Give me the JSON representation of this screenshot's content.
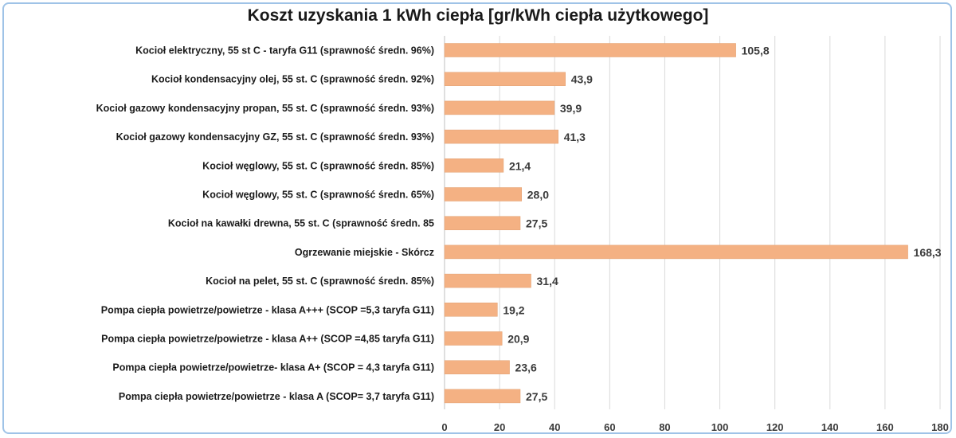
{
  "chart_data": {
    "type": "bar",
    "orientation": "horizontal",
    "title": "Koszt uzyskania 1 kWh ciepła [gr/kWh ciepła użytkowego]",
    "xlabel": "",
    "ylabel": "",
    "xlim": [
      0,
      180
    ],
    "x_ticks": [
      "0",
      "20",
      "40",
      "60",
      "80",
      "100",
      "120",
      "140",
      "160",
      "180"
    ],
    "grid": true,
    "bar_color": "#f4b183",
    "categories": [
      "Kocioł  elektryczny, 55 st C -  taryfa G11 (sprawność średn. 96%)",
      "Kocioł  kondensacyjny olej, 55 st. C (sprawność średn. 92%)",
      "Kocioł gazowy kondensacyjny propan, 55 st. C (sprawność średn. 93%)",
      "Kocioł gazowy kondensacyjny GZ, 55 st. C (sprawność średn. 93%)",
      "Kocioł węglowy,  55 st. C (sprawność średn. 85%)",
      "Kocioł węglowy, 55 st. C (sprawność średn. 65%)",
      "Kocioł na kawałki drewna, 55 st. C (sprawność średn. 85",
      "Ogrzewanie miejskie - Skórcz",
      "Kocioł na pelet, 55 st. C (sprawność średn. 85%)",
      "Pompa ciepła powietrze/powietrze -  klasa A+++ (SCOP =5,3 taryfa G11)",
      "Pompa ciepła powietrze/powietrze - klasa A++ (SCOP =4,85 taryfa G11)",
      "Pompa ciepła powietrze/powietrze-  klasa A+ (SCOP = 4,3 taryfa G11)",
      "Pompa ciepła powietrze/powietrze - klasa A (SCOP= 3,7 taryfa G11)"
    ],
    "values": [
      105.8,
      43.9,
      39.9,
      41.3,
      21.4,
      28.0,
      27.5,
      168.3,
      31.4,
      19.2,
      20.9,
      23.6,
      27.5
    ],
    "value_labels": [
      "105,8",
      "43,9",
      "39,9",
      "41,3",
      "21,4",
      "28,0",
      "27,5",
      "168,3",
      "31,4",
      "19,2",
      "20,9",
      "23,6",
      "27,5"
    ]
  }
}
